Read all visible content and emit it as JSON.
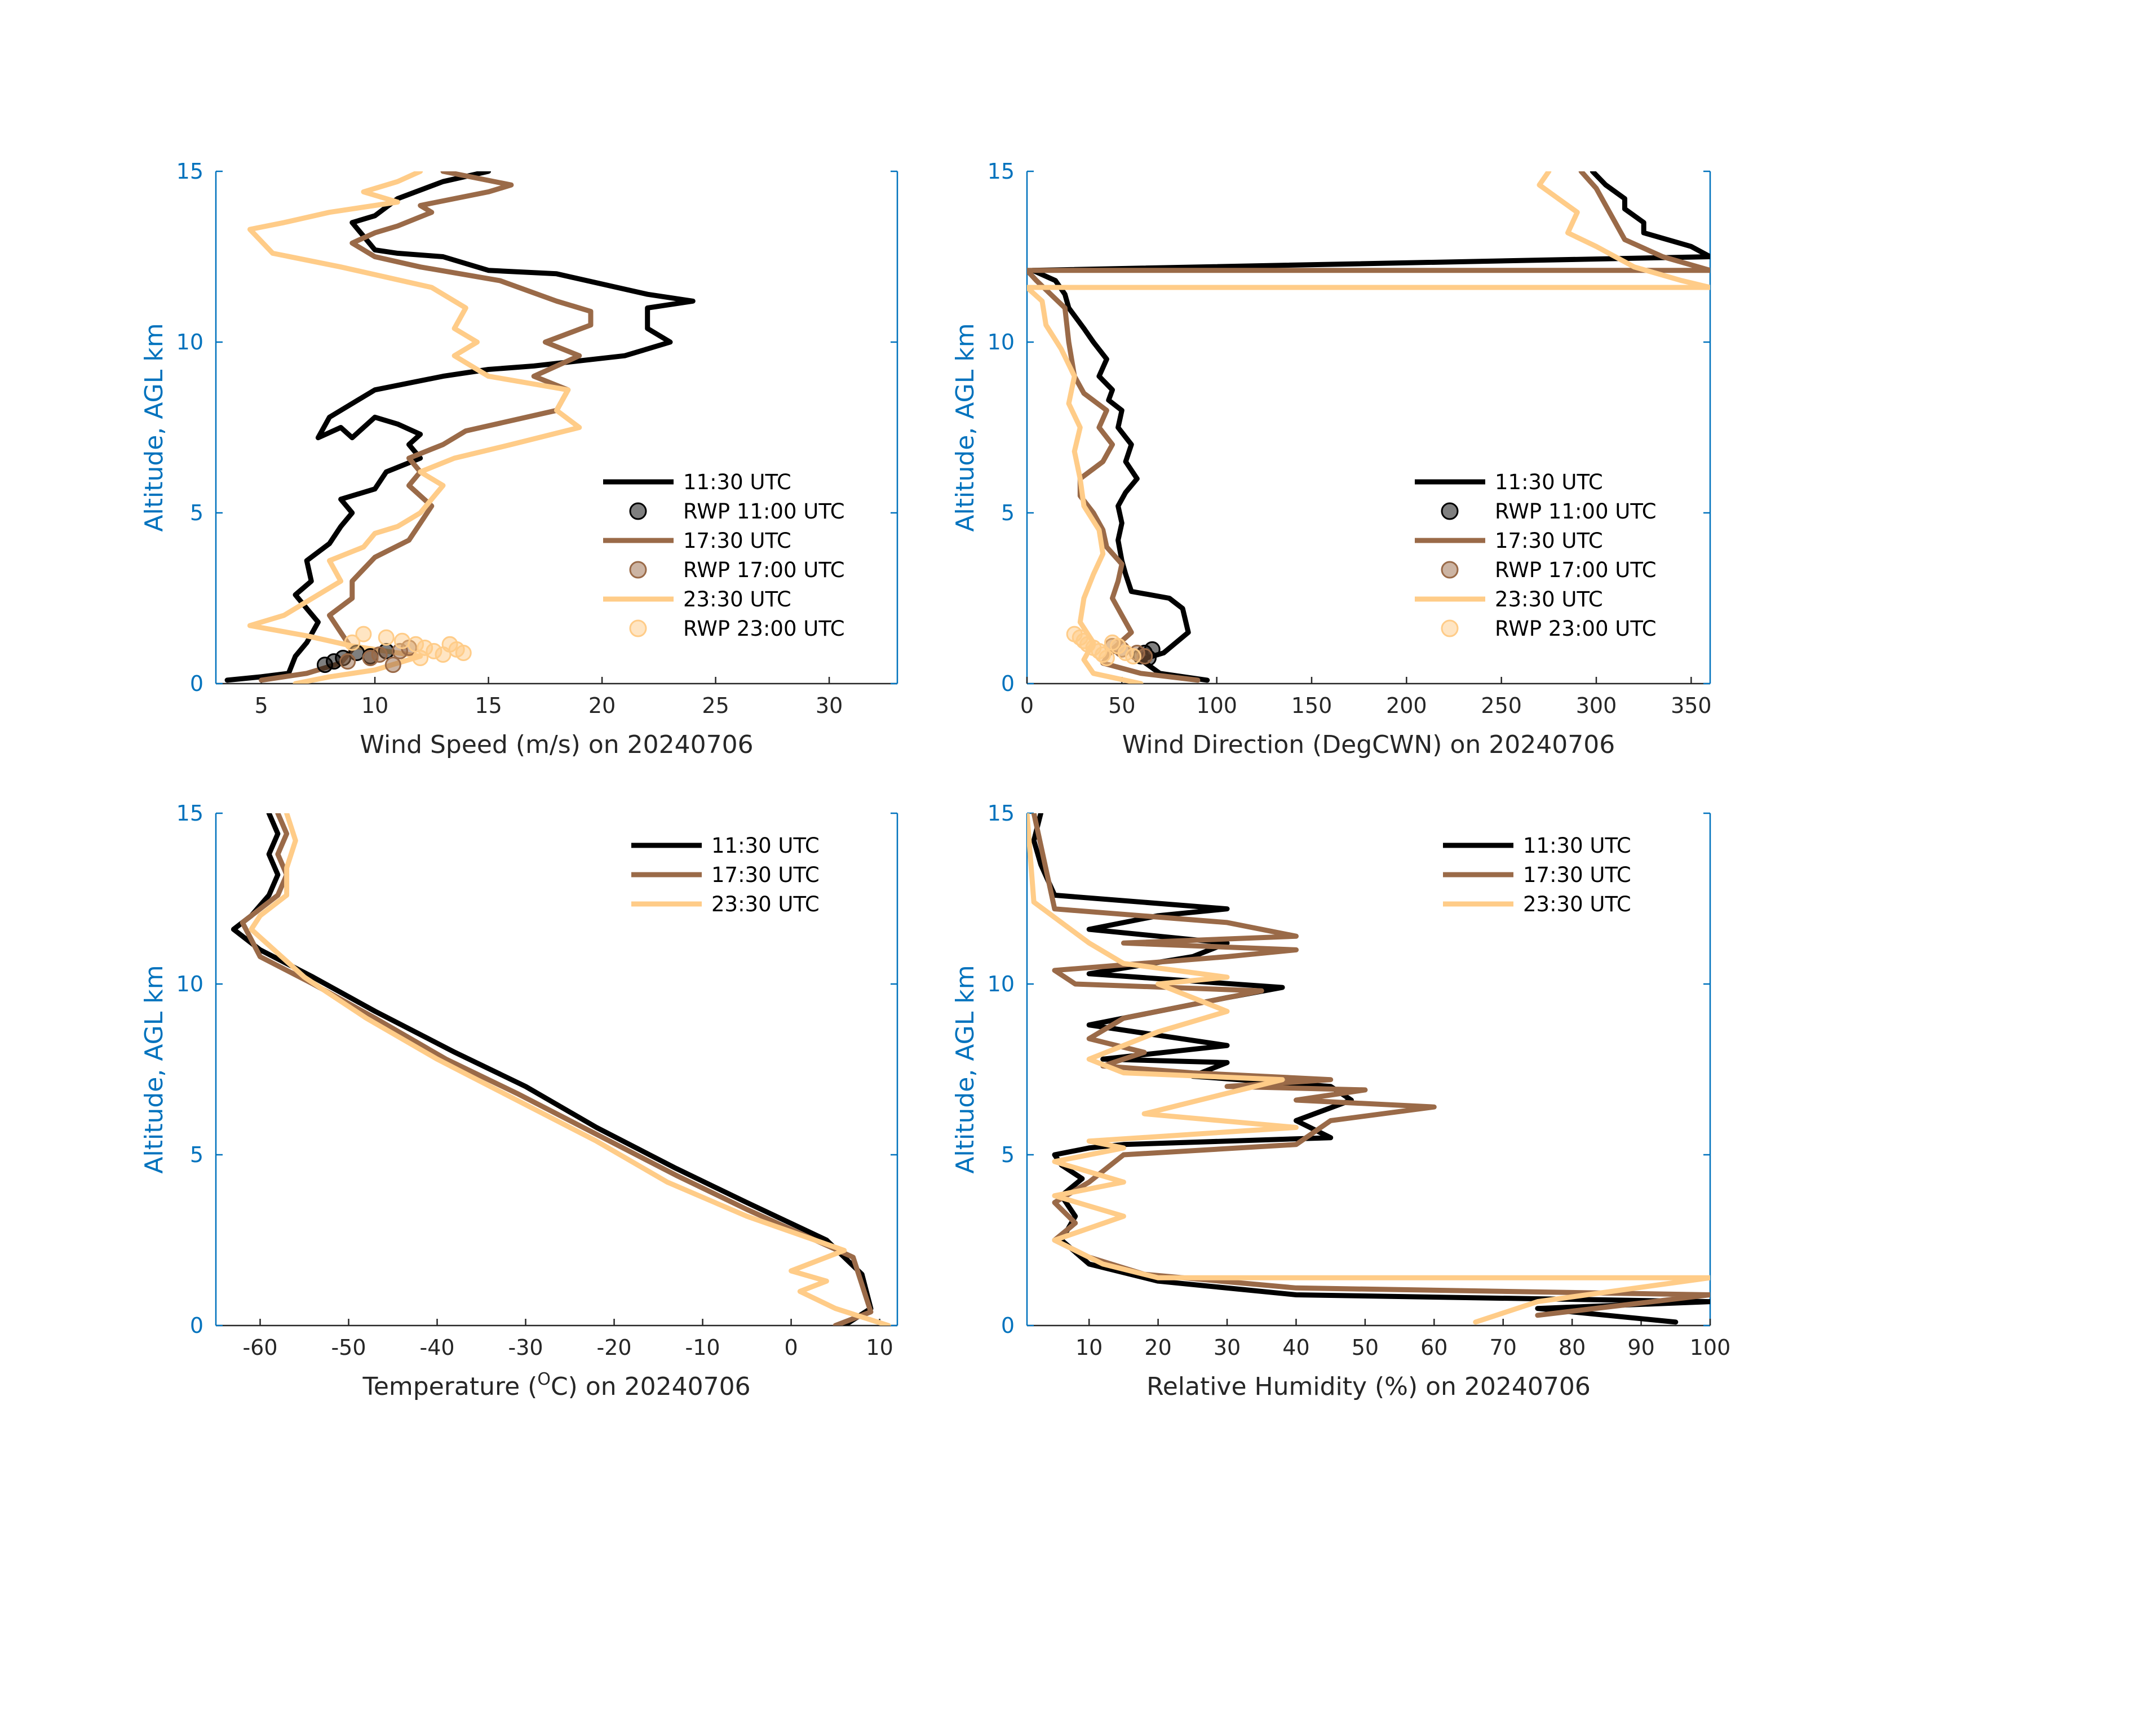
{
  "colors": {
    "black": "#000000",
    "brown": "#9A6A48",
    "peach": "#FFCC88",
    "axis_blue": "#0072BD"
  },
  "chart_data": [
    {
      "type": "line",
      "id": "wind-speed",
      "xlabel": "Wind Speed (m/s) on 20240706",
      "ylabel": "Altitude, AGL km",
      "xlim": [
        3,
        33
      ],
      "ylim": [
        0,
        15
      ],
      "xticks": [
        "5",
        "10",
        "15",
        "20",
        "25",
        "30"
      ],
      "yticks": [
        "0",
        "5",
        "10",
        "15"
      ],
      "legend_position": "right-middle",
      "legend": [
        "11:30 UTC",
        "RWP 11:00 UTC",
        "17:30 UTC",
        "RWP 17:00 UTC",
        "23:30 UTC",
        "RWP 23:00 UTC"
      ],
      "series": [
        {
          "name": "11:30 UTC",
          "color": "#000000",
          "x": [
            3.5,
            5,
            6.2,
            6.5,
            7,
            7.5,
            7,
            6.5,
            7.2,
            7,
            8,
            8.5,
            9,
            8.5,
            10,
            10.5,
            12,
            11.5,
            12,
            11,
            10,
            9,
            8.5,
            7.5,
            8,
            8.5,
            10,
            13,
            15,
            17,
            21,
            23,
            22,
            22,
            24,
            22,
            18,
            15,
            13,
            11,
            10,
            9.5,
            9,
            10,
            11,
            13,
            15
          ],
          "y": [
            0.1,
            0.2,
            0.3,
            0.8,
            1.2,
            1.8,
            2.2,
            2.6,
            3.0,
            3.6,
            4.1,
            4.6,
            5,
            5.4,
            5.7,
            6.2,
            6.6,
            7,
            7.3,
            7.6,
            7.8,
            7.2,
            7.5,
            7.2,
            7.8,
            8.0,
            8.6,
            9.0,
            9.2,
            9.3,
            9.6,
            10.0,
            10.4,
            11,
            11.2,
            11.4,
            12.0,
            12.1,
            12.5,
            12.6,
            12.7,
            13.1,
            13.5,
            13.7,
            14.2,
            14.7,
            15
          ]
        },
        {
          "name": "17:30 UTC",
          "color": "#9A6A48",
          "x": [
            5,
            7,
            8.5,
            9,
            8.5,
            8,
            9,
            9,
            10,
            11.5,
            12,
            12.5,
            11.5,
            12,
            11.5,
            13,
            14,
            18,
            18.5,
            17,
            19,
            17.5,
            19.5,
            19.5,
            18,
            15.5,
            12,
            10,
            9,
            10,
            11,
            12.5,
            12,
            15,
            16,
            13
          ],
          "y": [
            0.1,
            0.3,
            0.6,
            1.0,
            1.5,
            2.0,
            2.5,
            3.0,
            3.7,
            4.2,
            4.7,
            5.2,
            5.8,
            6.2,
            6.6,
            7.0,
            7.4,
            8.0,
            8.6,
            9.0,
            9.6,
            10.0,
            10.5,
            10.9,
            11.2,
            11.8,
            12.2,
            12.5,
            12.9,
            13.2,
            13.4,
            13.8,
            14.0,
            14.4,
            14.6,
            15
          ]
        },
        {
          "name": "23:30 UTC",
          "color": "#FFCC88",
          "x": [
            6.5,
            8,
            10,
            12,
            9,
            7,
            4.5,
            6,
            7.5,
            8.5,
            8,
            9.5,
            10,
            11,
            12,
            12.5,
            13,
            12,
            13.5,
            16,
            19,
            18,
            18.5,
            15,
            13.5,
            14.5,
            13.5,
            14,
            12.5,
            8.5,
            5.5,
            4.5,
            6,
            8,
            11,
            9.5,
            11,
            12
          ],
          "y": [
            0,
            0.2,
            0.4,
            0.8,
            1.1,
            1.4,
            1.7,
            2.0,
            2.6,
            3.0,
            3.6,
            4.0,
            4.4,
            4.6,
            5.0,
            5.4,
            5.8,
            6.2,
            6.6,
            7.0,
            7.5,
            8.0,
            8.6,
            9.0,
            9.6,
            10.0,
            10.4,
            11.0,
            11.6,
            12.2,
            12.6,
            13.3,
            13.5,
            13.8,
            14.1,
            14.4,
            14.7,
            15
          ]
        }
      ],
      "markers": [
        {
          "name": "RWP 11:00 UTC",
          "color": "#000000",
          "x": [
            7.8,
            8.2,
            8.6,
            9.2,
            9.8,
            10.5
          ],
          "y": [
            0.55,
            0.65,
            0.75,
            0.9,
            0.8,
            0.95
          ]
        },
        {
          "name": "RWP 17:00 UTC",
          "color": "#9A6A48",
          "x": [
            8.8,
            9.8,
            10.2,
            10.8,
            11.1,
            11.5
          ],
          "y": [
            0.65,
            0.75,
            0.85,
            0.55,
            0.95,
            1.05
          ]
        },
        {
          "name": "RWP 23:00 UTC",
          "color": "#FFCC88",
          "x": [
            9.5,
            10.5,
            11.2,
            11.8,
            12.2,
            12.6,
            13.0,
            13.3,
            13.6,
            13.9,
            9.0,
            12.0
          ],
          "y": [
            1.45,
            1.35,
            1.25,
            1.15,
            1.05,
            0.95,
            0.85,
            1.15,
            1.0,
            0.9,
            1.2,
            0.75
          ]
        }
      ]
    },
    {
      "type": "line",
      "id": "wind-direction",
      "xlabel": "Wind Direction (DegCWN) on 20240706",
      "ylabel": "Altitude, AGL km",
      "xlim": [
        0,
        360
      ],
      "ylim": [
        0,
        15
      ],
      "xticks": [
        "0",
        "50",
        "100",
        "150",
        "200",
        "250",
        "300",
        "350"
      ],
      "yticks": [
        "0",
        "5",
        "10",
        "15"
      ],
      "legend_position": "right-middle",
      "legend": [
        "11:30 UTC",
        "RWP 11:00 UTC",
        "17:30 UTC",
        "RWP 17:00 UTC",
        "23:30 UTC",
        "RWP 23:00 UTC"
      ],
      "series": [
        {
          "name": "11:30 UTC",
          "color": "#000000",
          "x": [
            95,
            70,
            60,
            72,
            85,
            82,
            75,
            55,
            52,
            50,
            48,
            50,
            48,
            52,
            58,
            52,
            55,
            48,
            50,
            43,
            45,
            38,
            42,
            35,
            30,
            22,
            20,
            15,
            3,
            360,
            350,
            325,
            325,
            315,
            315,
            305,
            298
          ],
          "y": [
            0.1,
            0.3,
            0.7,
            0.9,
            1.5,
            2.2,
            2.5,
            2.7,
            3.2,
            3.6,
            4.2,
            4.7,
            5.2,
            5.6,
            6.0,
            6.5,
            7.0,
            7.5,
            8.0,
            8.3,
            8.6,
            9.0,
            9.5,
            10.0,
            10.4,
            11.0,
            11.4,
            11.8,
            12.1,
            12.5,
            12.8,
            13.2,
            13.5,
            13.9,
            14.2,
            14.6,
            15
          ]
        },
        {
          "name": "17:30 UTC",
          "color": "#9A6A48",
          "x": [
            90,
            60,
            40,
            45,
            55,
            50,
            45,
            48,
            50,
            42,
            40,
            35,
            28,
            28,
            40,
            45,
            38,
            42,
            30,
            25,
            22,
            20,
            5,
            0,
            360,
            335,
            315,
            310,
            305,
            300,
            292
          ],
          "y": [
            0.1,
            0.3,
            0.6,
            1.0,
            1.5,
            2.0,
            2.5,
            3.0,
            3.5,
            4.0,
            4.5,
            5.0,
            5.5,
            6.0,
            6.5,
            7.0,
            7.5,
            8.0,
            8.5,
            9.0,
            10.0,
            11.0,
            11.8,
            12.1,
            12.1,
            12.5,
            13.0,
            13.5,
            14.0,
            14.5,
            15
          ]
        },
        {
          "name": "23:30 UTC",
          "color": "#FFCC88",
          "x": [
            60,
            35,
            30,
            35,
            28,
            30,
            35,
            40,
            38,
            30,
            28,
            25,
            28,
            22,
            25,
            18,
            10,
            8,
            0,
            360,
            345,
            320,
            300,
            285,
            290,
            280,
            270,
            275
          ],
          "y": [
            0,
            0.3,
            0.7,
            1.2,
            1.8,
            2.5,
            3.2,
            3.8,
            4.5,
            5.2,
            6.0,
            6.8,
            7.5,
            8.2,
            9.0,
            9.8,
            10.5,
            11.2,
            11.6,
            11.6,
            11.8,
            12.2,
            12.8,
            13.2,
            13.8,
            14.2,
            14.6,
            15
          ]
        }
      ],
      "markers": [
        {
          "name": "RWP 11:00 UTC",
          "color": "#000000",
          "x": [
            60,
            62,
            64,
            66
          ],
          "y": [
            0.8,
            0.9,
            0.75,
            1.0
          ]
        },
        {
          "name": "RWP 17:00 UTC",
          "color": "#9A6A48",
          "x": [
            45,
            50,
            58,
            62
          ],
          "y": [
            1.1,
            1.0,
            0.9,
            0.8
          ]
        },
        {
          "name": "RWP 23:00 UTC",
          "color": "#FFCC88",
          "x": [
            25,
            28,
            30,
            32,
            35,
            38,
            40,
            42,
            45,
            48,
            52,
            56
          ],
          "y": [
            1.45,
            1.35,
            1.25,
            1.15,
            1.05,
            0.95,
            0.85,
            0.75,
            1.2,
            1.1,
            0.9,
            0.8
          ]
        }
      ]
    },
    {
      "type": "line",
      "id": "temperature",
      "xlabel": "Temperature (",
      "xlabel_sup": "O",
      "xlabel_rest": "C) on 20240706",
      "ylabel": "Altitude, AGL km",
      "xlim": [
        -65,
        12
      ],
      "ylim": [
        0,
        15
      ],
      "xticks": [
        "-60",
        "-50",
        "-40",
        "-30",
        "-20",
        "-10",
        "0",
        "10"
      ],
      "yticks": [
        "0",
        "5",
        "10",
        "15"
      ],
      "legend_position": "top-right",
      "legend": [
        "11:30 UTC",
        "17:30 UTC",
        "23:30 UTC"
      ],
      "series": [
        {
          "name": "11:30 UTC",
          "color": "#000000",
          "x": [
            6,
            9,
            8,
            4,
            -5,
            -13,
            -22,
            -30,
            -38,
            -47,
            -54,
            -60,
            -63,
            -61,
            -59,
            -58,
            -59,
            -58,
            -59
          ],
          "y": [
            0,
            0.5,
            1.5,
            2.5,
            3.6,
            4.6,
            5.8,
            7,
            8,
            9.2,
            10.2,
            11,
            11.6,
            12.0,
            12.6,
            13.2,
            13.8,
            14.4,
            15
          ]
        },
        {
          "name": "17:30 UTC",
          "color": "#9A6A48",
          "x": [
            5,
            9,
            8,
            7,
            -5,
            -13,
            -22,
            -31,
            -39,
            -47,
            -54,
            -60,
            -62,
            -60,
            -58,
            -57,
            -58,
            -57,
            -58
          ],
          "y": [
            0,
            0.4,
            1.2,
            2.0,
            3.4,
            4.4,
            5.6,
            6.8,
            7.8,
            9.0,
            10.0,
            10.8,
            11.8,
            12.2,
            12.6,
            13.2,
            13.8,
            14.4,
            15
          ]
        },
        {
          "name": "23:30 UTC",
          "color": "#FFCC88",
          "x": [
            11,
            5,
            1,
            4,
            0,
            6,
            -5,
            -14,
            -22,
            -31,
            -40,
            -48,
            -55,
            -61,
            -60,
            -57,
            -57,
            -56,
            -57
          ],
          "y": [
            0,
            0.5,
            1.0,
            1.3,
            1.6,
            2.2,
            3.2,
            4.2,
            5.4,
            6.6,
            7.8,
            9.0,
            10.2,
            11.6,
            12.0,
            12.6,
            13.4,
            14.2,
            15
          ]
        }
      ]
    },
    {
      "type": "line",
      "id": "relative-humidity",
      "xlabel": "Relative Humidity (%) on 20240706",
      "ylabel": "Altitude, AGL km",
      "xlim": [
        1,
        100
      ],
      "ylim": [
        0,
        15
      ],
      "xticks": [
        "10",
        "20",
        "30",
        "40",
        "50",
        "60",
        "70",
        "80",
        "90",
        "100"
      ],
      "yticks": [
        "0",
        "5",
        "10",
        "15"
      ],
      "legend_position": "top-right",
      "legend": [
        "11:30 UTC",
        "17:30 UTC",
        "23:30 UTC"
      ],
      "series": [
        {
          "name": "11:30 UTC",
          "color": "#000000",
          "x": [
            95,
            75,
            100,
            40,
            20,
            10,
            6,
            8,
            6,
            9,
            6,
            5,
            10,
            15,
            45,
            40,
            48,
            45,
            25,
            30,
            12,
            30,
            10,
            30,
            38,
            10,
            25,
            30,
            10,
            20,
            30,
            5,
            3,
            2,
            3
          ],
          "y": [
            0.1,
            0.5,
            0.7,
            0.9,
            1.3,
            1.8,
            2.5,
            3.2,
            3.8,
            4.3,
            4.7,
            5.0,
            5.2,
            5.3,
            5.5,
            6.0,
            6.6,
            7.0,
            7.3,
            7.7,
            7.8,
            8.2,
            8.8,
            9.6,
            9.9,
            10.3,
            10.8,
            11.2,
            11.6,
            12.0,
            12.2,
            12.6,
            13.5,
            14.2,
            15
          ]
        },
        {
          "name": "17:30 UTC",
          "color": "#9A6A48",
          "x": [
            75,
            100,
            40,
            18,
            10,
            5,
            8,
            5,
            10,
            15,
            40,
            45,
            60,
            40,
            50,
            30,
            45,
            25,
            12,
            18,
            10,
            15,
            35,
            8,
            5,
            30,
            40,
            15,
            40,
            30,
            5,
            2
          ],
          "y": [
            0.3,
            0.9,
            1.1,
            1.5,
            2.0,
            2.5,
            3.0,
            3.6,
            4.2,
            5.0,
            5.3,
            6.0,
            6.4,
            6.6,
            6.9,
            7.0,
            7.2,
            7.4,
            7.6,
            8.0,
            8.4,
            9.0,
            9.8,
            10.0,
            10.4,
            10.8,
            11.0,
            11.2,
            11.4,
            11.8,
            12.2,
            15
          ]
        },
        {
          "name": "23:30 UTC",
          "color": "#FFCC88",
          "x": [
            66,
            75,
            100,
            20,
            12,
            5,
            15,
            5,
            15,
            5,
            15,
            10,
            40,
            18,
            30,
            38,
            15,
            10,
            20,
            30,
            25,
            20,
            30,
            15,
            10,
            2,
            1
          ],
          "y": [
            0.1,
            0.7,
            1.4,
            1.4,
            1.8,
            2.5,
            3.2,
            3.8,
            4.2,
            4.8,
            5.2,
            5.4,
            5.8,
            6.2,
            6.8,
            7.2,
            7.4,
            7.8,
            8.6,
            9.2,
            9.6,
            10.0,
            10.2,
            10.6,
            11.2,
            12.4,
            15
          ]
        }
      ]
    }
  ]
}
